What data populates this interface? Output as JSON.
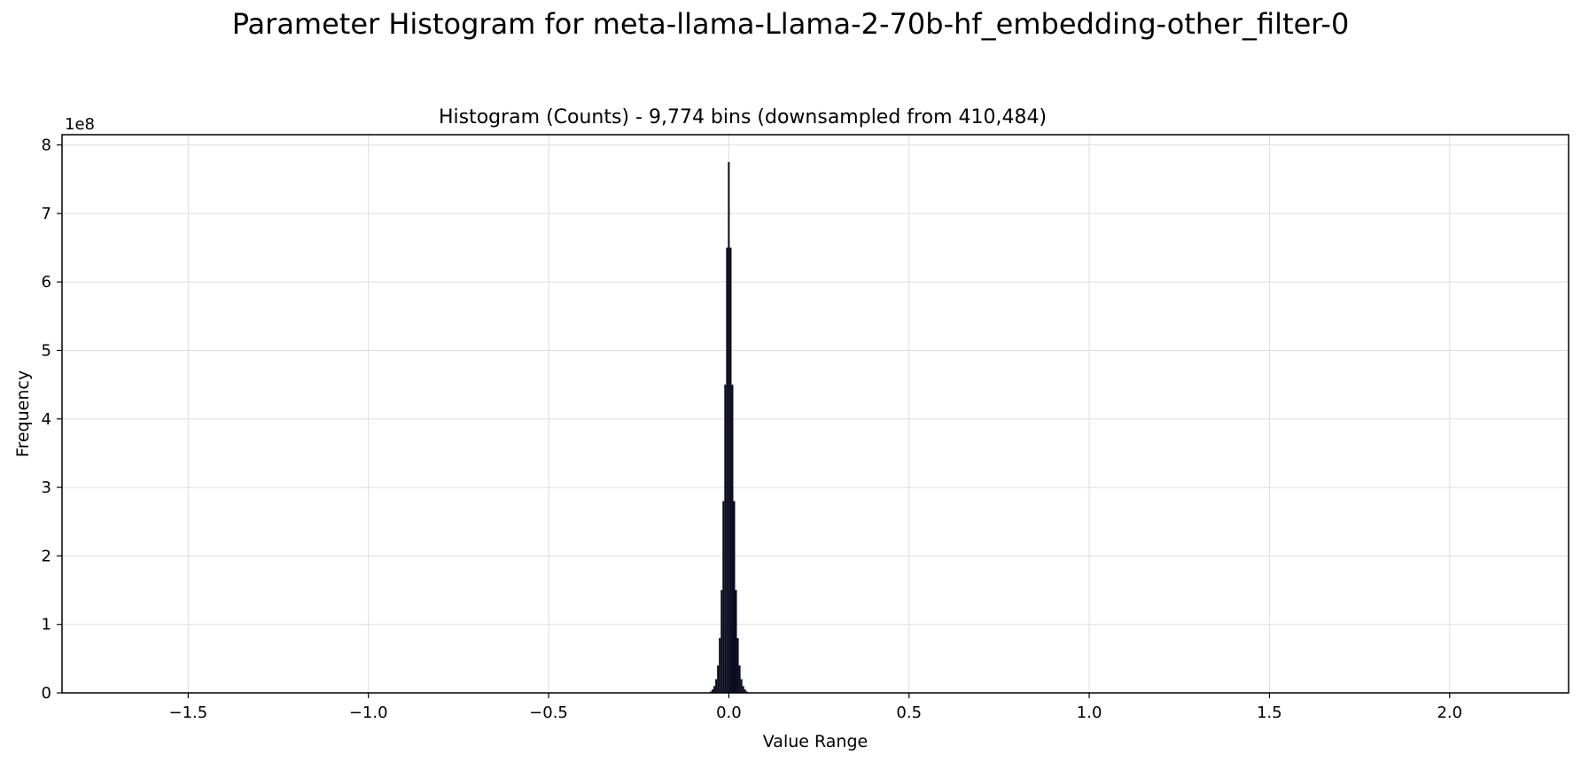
{
  "figure": {
    "suptitle": "Parameter Histogram for meta-llama-Llama-2-70b-hf_embedding-other_filter-0"
  },
  "chart_data": {
    "type": "bar",
    "title": "Histogram (Counts) - 9,774 bins (downsampled from 410,484)",
    "xlabel": "Value Range",
    "ylabel": "Frequency",
    "y_offset_text": "1e8",
    "xlim": [
      -1.85,
      2.33
    ],
    "ylim": [
      0,
      815000000.0
    ],
    "x_ticks": [
      -1.5,
      -1.0,
      -0.5,
      0.0,
      0.5,
      1.0,
      1.5,
      2.0
    ],
    "x_tick_labels": [
      "−1.5",
      "−1.0",
      "−0.5",
      "0.0",
      "0.5",
      "1.0",
      "1.5",
      "2.0"
    ],
    "y_ticks": [
      0,
      100000000.0,
      200000000.0,
      300000000.0,
      400000000.0,
      500000000.0,
      600000000.0,
      700000000.0,
      800000000.0
    ],
    "y_tick_labels": [
      "0",
      "1",
      "2",
      "3",
      "4",
      "5",
      "6",
      "7",
      "8"
    ],
    "grid": true,
    "bar_color": "#0a0a1e",
    "peak_value": 775000000.0,
    "x": [
      -0.05,
      -0.045,
      -0.04,
      -0.035,
      -0.03,
      -0.025,
      -0.02,
      -0.015,
      -0.01,
      -0.005,
      0.0,
      0.005,
      0.01,
      0.015,
      0.02,
      0.025,
      0.03,
      0.035,
      0.04,
      0.045,
      0.05
    ],
    "values": [
      2000000.0,
      5000000.0,
      10000000.0,
      20000000.0,
      40000000.0,
      80000000.0,
      150000000.0,
      280000000.0,
      450000000.0,
      650000000.0,
      775000000.0,
      650000000.0,
      450000000.0,
      280000000.0,
      150000000.0,
      80000000.0,
      40000000.0,
      20000000.0,
      10000000.0,
      5000000.0,
      2000000.0
    ]
  }
}
